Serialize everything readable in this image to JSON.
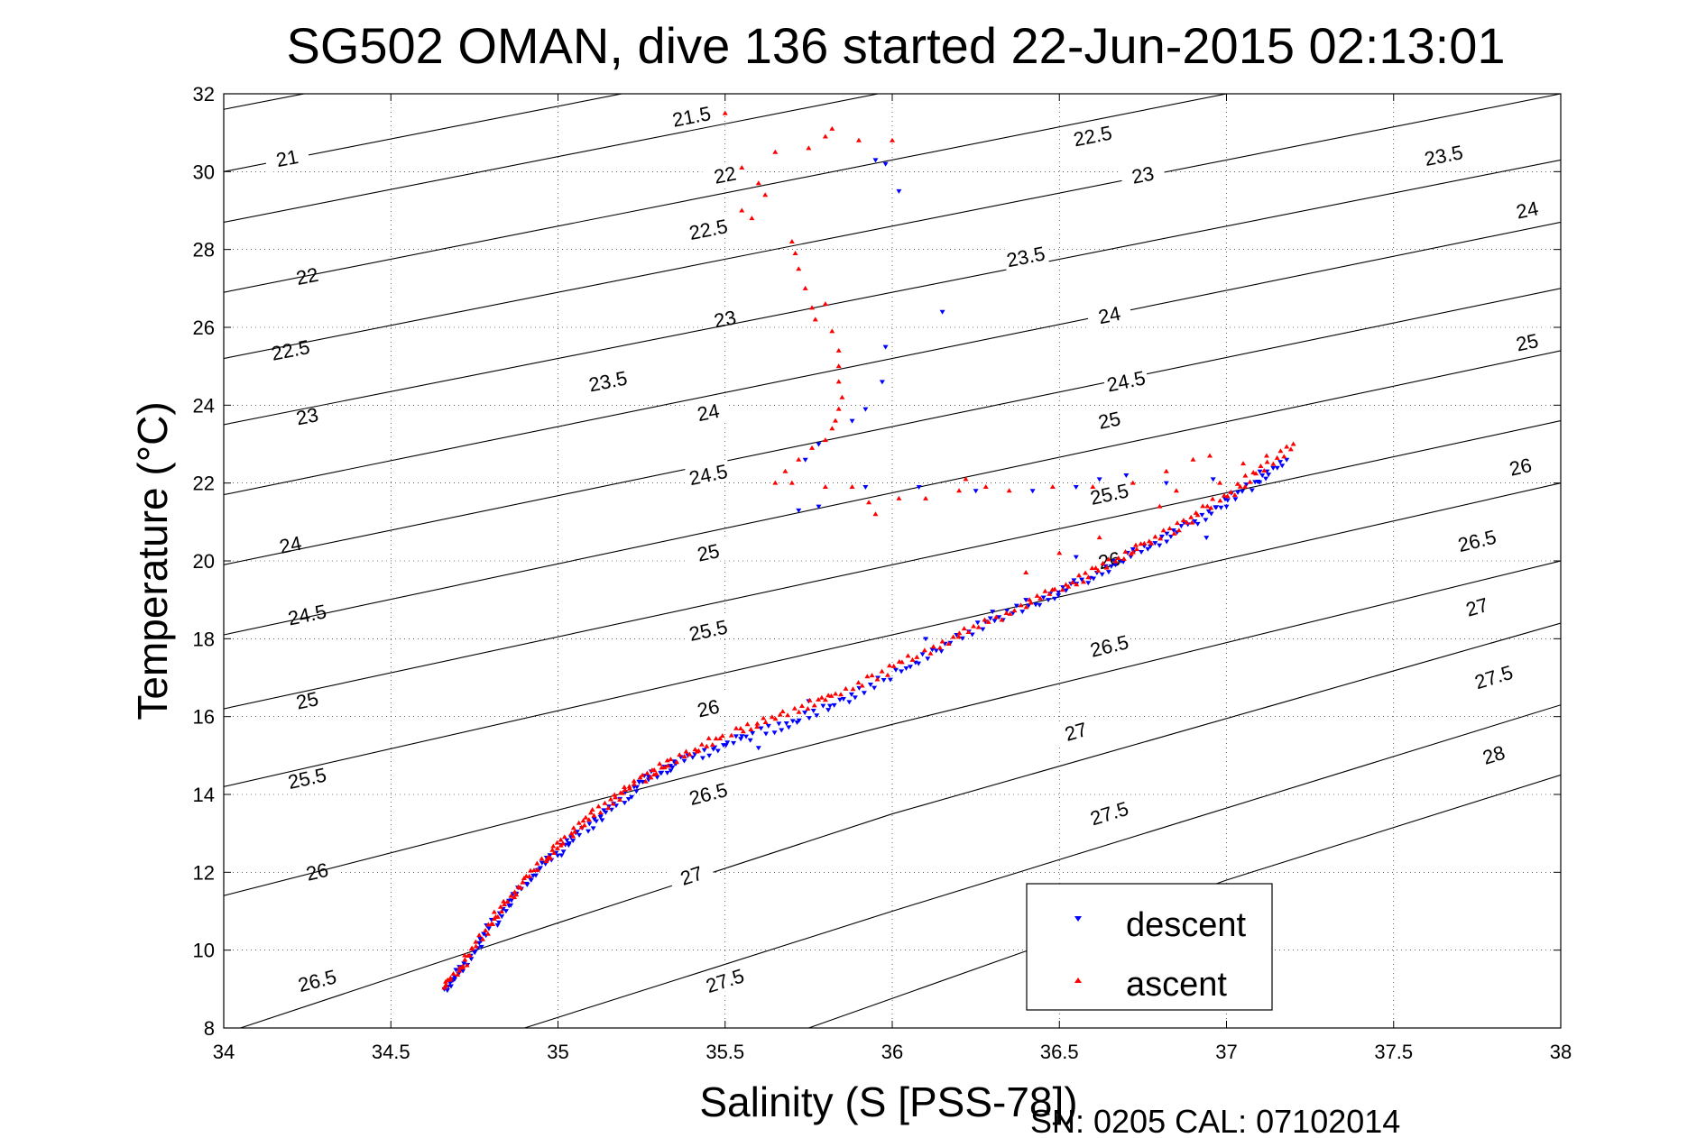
{
  "chart_data": {
    "type": "scatter",
    "title": "SG502 OMAN, dive 136 started 22-Jun-2015 02:13:01",
    "xlabel": "Salinity (S [PSS-78])",
    "ylabel": "Temperature (°C)",
    "xlim": [
      34,
      38
    ],
    "ylim": [
      8,
      32
    ],
    "xticks": [
      34,
      34.5,
      35,
      35.5,
      36,
      36.5,
      37,
      37.5,
      38
    ],
    "xtick_labels": [
      "34",
      "34.5",
      "35",
      "35.5",
      "36",
      "36.5",
      "37",
      "37.5",
      "38"
    ],
    "yticks": [
      8,
      10,
      12,
      14,
      16,
      18,
      20,
      22,
      24,
      26,
      28,
      30,
      32
    ],
    "ytick_labels": [
      "8",
      "10",
      "12",
      "14",
      "16",
      "18",
      "20",
      "22",
      "24",
      "26",
      "28",
      "30",
      "32"
    ],
    "grid": true,
    "legend_position": "lower-right",
    "contours": [
      {
        "level": "21",
        "points": [
          [
            34,
            30.0
          ],
          [
            36.5,
            34.2
          ]
        ],
        "labels": [
          [
            34.19,
            30.33
          ]
        ]
      },
      {
        "level": "21.5",
        "points": [
          [
            34,
            31.6
          ],
          [
            35.5,
            34.1
          ]
        ],
        "labels": [
          [
            35.4,
            31.4
          ]
        ]
      },
      {
        "level": "22",
        "points": [
          [
            34,
            28.7
          ],
          [
            37.5,
            34.6
          ]
        ],
        "labels": [
          [
            34.25,
            27.3
          ],
          [
            35.5,
            29.9
          ]
        ]
      },
      {
        "level": "22.5",
        "points": [
          [
            34,
            26.9
          ],
          [
            38,
            33.7
          ]
        ],
        "labels": [
          [
            34.2,
            25.4
          ],
          [
            35.45,
            28.5
          ],
          [
            36.6,
            30.9
          ]
        ]
      },
      {
        "level": "23",
        "points": [
          [
            34,
            25.2
          ],
          [
            38,
            32.0
          ]
        ],
        "labels": [
          [
            34.25,
            23.7
          ],
          [
            35.5,
            26.2
          ],
          [
            36.75,
            29.9
          ]
        ]
      },
      {
        "level": "23.5",
        "points": [
          [
            34,
            23.5
          ],
          [
            38,
            30.3
          ]
        ],
        "labels": [
          [
            35.15,
            24.6
          ],
          [
            36.4,
            27.8
          ],
          [
            37.65,
            30.4
          ]
        ]
      },
      {
        "level": "24",
        "points": [
          [
            34,
            21.7
          ],
          [
            38,
            28.7
          ]
        ],
        "labels": [
          [
            34.2,
            20.4
          ],
          [
            35.45,
            23.8
          ],
          [
            36.65,
            26.3
          ],
          [
            37.9,
            29.0
          ]
        ]
      },
      {
        "level": "24.5",
        "points": [
          [
            34,
            19.9
          ],
          [
            38,
            27.0
          ]
        ],
        "labels": [
          [
            34.25,
            18.6
          ],
          [
            35.45,
            22.2
          ],
          [
            36.7,
            24.6
          ]
        ]
      },
      {
        "level": "25",
        "points": [
          [
            34,
            18.1
          ],
          [
            38,
            25.4
          ]
        ],
        "labels": [
          [
            34.25,
            16.4
          ],
          [
            35.45,
            20.2
          ],
          [
            36.65,
            23.6
          ],
          [
            37.9,
            25.6
          ]
        ]
      },
      {
        "level": "25.5",
        "points": [
          [
            34,
            16.2
          ],
          [
            38,
            23.6
          ]
        ],
        "labels": [
          [
            34.25,
            14.4
          ],
          [
            35.45,
            18.2
          ],
          [
            36.65,
            21.7
          ]
        ]
      },
      {
        "level": "26",
        "points": [
          [
            34,
            14.2
          ],
          [
            38,
            22.0
          ]
        ],
        "labels": [
          [
            34.28,
            12.0
          ],
          [
            35.45,
            16.2
          ],
          [
            36.65,
            20.0
          ],
          [
            37.88,
            22.4
          ]
        ]
      },
      {
        "level": "26.5",
        "points": [
          [
            34,
            11.4
          ],
          [
            36,
            15.8
          ],
          [
            38,
            20.0
          ]
        ],
        "labels": [
          [
            34.28,
            9.2
          ],
          [
            35.45,
            14.0
          ],
          [
            36.65,
            17.8
          ],
          [
            37.75,
            20.5
          ]
        ]
      },
      {
        "level": "27",
        "points": [
          [
            34.05,
            8.0
          ],
          [
            35,
            10.7
          ],
          [
            36,
            13.5
          ],
          [
            38,
            18.4
          ]
        ],
        "labels": [
          [
            35.4,
            11.9
          ],
          [
            36.55,
            15.6
          ],
          [
            37.75,
            18.8
          ]
        ]
      },
      {
        "level": "27.5",
        "points": [
          [
            34.9,
            8.0
          ],
          [
            36,
            11.0
          ],
          [
            38,
            16.3
          ]
        ],
        "labels": [
          [
            35.5,
            9.2
          ],
          [
            36.65,
            13.5
          ],
          [
            37.8,
            17.0
          ]
        ]
      },
      {
        "level": "28",
        "points": [
          [
            35.75,
            8.0
          ],
          [
            37,
            11.8
          ],
          [
            38,
            14.5
          ]
        ],
        "labels": [
          [
            37.8,
            15.0
          ]
        ]
      }
    ],
    "series": [
      {
        "name": "descent",
        "color": "#0000ff",
        "marker": "triangle-down",
        "path": [
          [
            34.66,
            9.0
          ],
          [
            34.72,
            9.6
          ],
          [
            34.8,
            10.6
          ],
          [
            34.88,
            11.5
          ],
          [
            34.97,
            12.3
          ],
          [
            35.05,
            12.9
          ],
          [
            35.15,
            13.6
          ],
          [
            35.25,
            14.3
          ],
          [
            35.35,
            14.8
          ],
          [
            35.5,
            15.3
          ],
          [
            35.68,
            15.8
          ],
          [
            35.85,
            16.4
          ],
          [
            36.05,
            17.3
          ],
          [
            36.25,
            18.3
          ],
          [
            36.45,
            19.0
          ],
          [
            36.6,
            19.6
          ],
          [
            36.75,
            20.3
          ],
          [
            36.9,
            21.0
          ],
          [
            37.05,
            21.8
          ],
          [
            37.18,
            22.6
          ]
        ],
        "extra_points": [
          [
            35.95,
            30.3
          ],
          [
            35.98,
            30.2
          ],
          [
            36.02,
            29.5
          ],
          [
            36.15,
            26.4
          ],
          [
            35.98,
            25.5
          ],
          [
            35.97,
            24.6
          ],
          [
            35.92,
            23.9
          ],
          [
            35.88,
            23.6
          ],
          [
            35.78,
            23.0
          ],
          [
            35.74,
            22.6
          ],
          [
            35.78,
            21.4
          ],
          [
            35.72,
            21.3
          ],
          [
            35.92,
            21.9
          ],
          [
            36.08,
            21.9
          ],
          [
            36.25,
            21.8
          ],
          [
            36.42,
            21.8
          ],
          [
            36.55,
            21.9
          ],
          [
            36.62,
            22.1
          ],
          [
            36.7,
            22.2
          ],
          [
            36.82,
            22.0
          ],
          [
            36.96,
            22.1
          ],
          [
            37.1,
            22.3
          ],
          [
            37.0,
            21.4
          ],
          [
            36.94,
            20.6
          ],
          [
            36.72,
            20.3
          ],
          [
            36.55,
            20.1
          ],
          [
            36.4,
            19.0
          ],
          [
            36.3,
            18.7
          ],
          [
            36.1,
            18.0
          ],
          [
            35.75,
            16.4
          ],
          [
            35.55,
            15.5
          ],
          [
            35.6,
            15.2
          ],
          [
            35.35,
            14.8
          ]
        ]
      },
      {
        "name": "ascent",
        "color": "#ff0000",
        "marker": "triangle-up",
        "path": [
          [
            34.66,
            9.0
          ],
          [
            34.72,
            9.7
          ],
          [
            34.8,
            10.7
          ],
          [
            34.88,
            11.6
          ],
          [
            34.97,
            12.4
          ],
          [
            35.05,
            13.1
          ],
          [
            35.15,
            13.8
          ],
          [
            35.25,
            14.4
          ],
          [
            35.35,
            14.9
          ],
          [
            35.5,
            15.5
          ],
          [
            35.68,
            16.1
          ],
          [
            35.85,
            16.6
          ],
          [
            36.05,
            17.5
          ],
          [
            36.25,
            18.3
          ],
          [
            36.45,
            19.1
          ],
          [
            36.6,
            19.7
          ],
          [
            36.75,
            20.4
          ],
          [
            36.9,
            21.1
          ],
          [
            37.05,
            22.0
          ],
          [
            37.2,
            23.0
          ]
        ],
        "extra_points": [
          [
            35.5,
            31.5
          ],
          [
            35.55,
            30.1
          ],
          [
            35.6,
            29.7
          ],
          [
            35.62,
            29.4
          ],
          [
            35.55,
            29.0
          ],
          [
            35.58,
            28.8
          ],
          [
            35.65,
            30.5
          ],
          [
            35.75,
            30.6
          ],
          [
            35.8,
            30.9
          ],
          [
            35.82,
            31.1
          ],
          [
            35.9,
            30.8
          ],
          [
            36.0,
            30.8
          ],
          [
            35.7,
            28.2
          ],
          [
            35.71,
            27.9
          ],
          [
            35.72,
            27.5
          ],
          [
            35.74,
            27.0
          ],
          [
            35.76,
            26.5
          ],
          [
            35.77,
            26.2
          ],
          [
            35.8,
            26.6
          ],
          [
            35.82,
            25.9
          ],
          [
            35.84,
            25.4
          ],
          [
            35.84,
            25.0
          ],
          [
            35.84,
            24.6
          ],
          [
            35.85,
            24.2
          ],
          [
            35.84,
            23.9
          ],
          [
            35.83,
            23.6
          ],
          [
            35.82,
            23.4
          ],
          [
            35.8,
            23.1
          ],
          [
            35.76,
            22.9
          ],
          [
            35.72,
            22.6
          ],
          [
            35.68,
            22.3
          ],
          [
            35.65,
            22.0
          ],
          [
            35.7,
            22.0
          ],
          [
            35.8,
            21.9
          ],
          [
            35.88,
            21.9
          ],
          [
            35.93,
            21.5
          ],
          [
            35.95,
            21.2
          ],
          [
            36.02,
            21.6
          ],
          [
            36.1,
            21.6
          ],
          [
            36.2,
            21.8
          ],
          [
            36.22,
            22.1
          ],
          [
            36.28,
            21.9
          ],
          [
            36.35,
            21.8
          ],
          [
            36.48,
            21.9
          ],
          [
            36.6,
            21.9
          ],
          [
            36.72,
            22.0
          ],
          [
            36.82,
            22.3
          ],
          [
            36.9,
            22.6
          ],
          [
            36.95,
            22.7
          ],
          [
            37.05,
            22.5
          ],
          [
            37.12,
            22.7
          ],
          [
            36.98,
            22.0
          ],
          [
            36.85,
            21.8
          ],
          [
            36.8,
            21.4
          ],
          [
            36.62,
            20.6
          ],
          [
            36.5,
            20.2
          ],
          [
            36.4,
            19.7
          ]
        ]
      }
    ],
    "annotations": [
      "SN: 0205  CAL: 07102014"
    ]
  },
  "legend": {
    "descent_label": "descent",
    "ascent_label": "ascent"
  },
  "footer": {
    "serial_cal": "SN: 0205  CAL: 07102014"
  }
}
